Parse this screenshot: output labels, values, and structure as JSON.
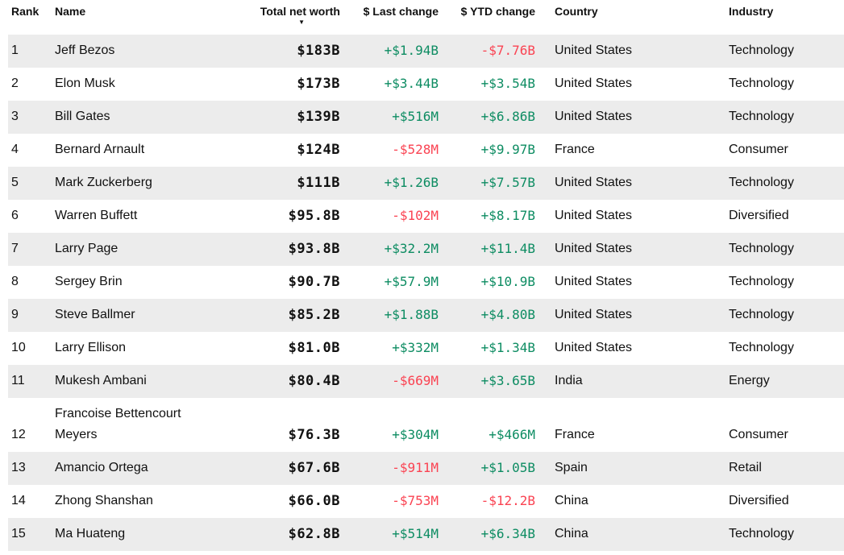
{
  "colors": {
    "positive": "#0d8c62",
    "negative": "#fa4352",
    "stripe": "#ececec",
    "text": "#111111"
  },
  "table": {
    "sort_icon": "▼",
    "sorted_column": "Total net worth",
    "sort_direction": "descending",
    "columns": [
      {
        "key": "rank",
        "label": "Rank"
      },
      {
        "key": "name",
        "label": "Name"
      },
      {
        "key": "net_worth",
        "label": "Total net worth"
      },
      {
        "key": "last_change",
        "label": "$ Last change"
      },
      {
        "key": "ytd_change",
        "label": "$ YTD change"
      },
      {
        "key": "country",
        "label": "Country"
      },
      {
        "key": "industry",
        "label": "Industry"
      }
    ],
    "rows": [
      {
        "rank": "1",
        "name": "Jeff Bezos",
        "net_worth": "$183B",
        "last_change": "+$1.94B",
        "ytd_change": "-$7.76B",
        "country": "United States",
        "industry": "Technology"
      },
      {
        "rank": "2",
        "name": "Elon Musk",
        "net_worth": "$173B",
        "last_change": "+$3.44B",
        "ytd_change": "+$3.54B",
        "country": "United States",
        "industry": "Technology"
      },
      {
        "rank": "3",
        "name": "Bill Gates",
        "net_worth": "$139B",
        "last_change": "+$516M",
        "ytd_change": "+$6.86B",
        "country": "United States",
        "industry": "Technology"
      },
      {
        "rank": "4",
        "name": "Bernard Arnault",
        "net_worth": "$124B",
        "last_change": "-$528M",
        "ytd_change": "+$9.97B",
        "country": "France",
        "industry": "Consumer"
      },
      {
        "rank": "5",
        "name": "Mark Zuckerberg",
        "net_worth": "$111B",
        "last_change": "+$1.26B",
        "ytd_change": "+$7.57B",
        "country": "United States",
        "industry": "Technology"
      },
      {
        "rank": "6",
        "name": "Warren Buffett",
        "net_worth": "$95.8B",
        "last_change": "-$102M",
        "ytd_change": "+$8.17B",
        "country": "United States",
        "industry": "Diversified"
      },
      {
        "rank": "7",
        "name": "Larry Page",
        "net_worth": "$93.8B",
        "last_change": "+$32.2M",
        "ytd_change": "+$11.4B",
        "country": "United States",
        "industry": "Technology"
      },
      {
        "rank": "8",
        "name": "Sergey Brin",
        "net_worth": "$90.7B",
        "last_change": "+$57.9M",
        "ytd_change": "+$10.9B",
        "country": "United States",
        "industry": "Technology"
      },
      {
        "rank": "9",
        "name": "Steve Ballmer",
        "net_worth": "$85.2B",
        "last_change": "+$1.88B",
        "ytd_change": "+$4.80B",
        "country": "United States",
        "industry": "Technology"
      },
      {
        "rank": "10",
        "name": "Larry Ellison",
        "net_worth": "$81.0B",
        "last_change": "+$332M",
        "ytd_change": "+$1.34B",
        "country": "United States",
        "industry": "Technology"
      },
      {
        "rank": "11",
        "name": "Mukesh Ambani",
        "net_worth": "$80.4B",
        "last_change": "-$669M",
        "ytd_change": "+$3.65B",
        "country": "India",
        "industry": "Energy"
      },
      {
        "rank": "12",
        "name": "Francoise Bettencourt Meyers",
        "net_worth": "$76.3B",
        "last_change": "+$304M",
        "ytd_change": "+$466M",
        "country": "France",
        "industry": "Consumer"
      },
      {
        "rank": "13",
        "name": "Amancio Ortega",
        "net_worth": "$67.6B",
        "last_change": "-$911M",
        "ytd_change": "+$1.05B",
        "country": "Spain",
        "industry": "Retail"
      },
      {
        "rank": "14",
        "name": "Zhong Shanshan",
        "net_worth": "$66.0B",
        "last_change": "-$753M",
        "ytd_change": "-$12.2B",
        "country": "China",
        "industry": "Diversified"
      },
      {
        "rank": "15",
        "name": "Ma Huateng",
        "net_worth": "$62.8B",
        "last_change": "+$514M",
        "ytd_change": "+$6.34B",
        "country": "China",
        "industry": "Technology"
      }
    ]
  }
}
